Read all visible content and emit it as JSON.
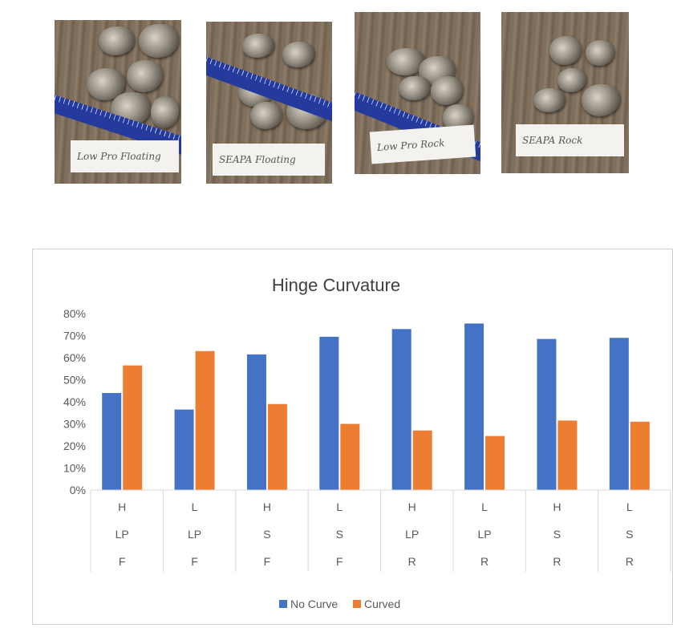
{
  "photos": [
    {
      "caption": "Low Pro Floating"
    },
    {
      "caption": "SEAPA Floating"
    },
    {
      "caption": "Low Pro Rock"
    },
    {
      "caption": "SEAPA Rock"
    }
  ],
  "chart_data": {
    "type": "bar",
    "title": "Hinge Curvature",
    "xlabel": "",
    "ylabel": "",
    "ylim": [
      0,
      0.8
    ],
    "yticks": [
      "0%",
      "10%",
      "20%",
      "30%",
      "40%",
      "50%",
      "60%",
      "70%",
      "80%"
    ],
    "categories": [
      [
        "H",
        "LP",
        "F"
      ],
      [
        "L",
        "LP",
        "F"
      ],
      [
        "H",
        "S",
        "F"
      ],
      [
        "L",
        "S",
        "F"
      ],
      [
        "H",
        "LP",
        "R"
      ],
      [
        "L",
        "LP",
        "R"
      ],
      [
        "H",
        "S",
        "R"
      ],
      [
        "L",
        "S",
        "R"
      ]
    ],
    "series": [
      {
        "name": "No Curve",
        "color": "#4472C4",
        "values": [
          0.44,
          0.365,
          0.615,
          0.695,
          0.73,
          0.755,
          0.685,
          0.69
        ]
      },
      {
        "name": "Curved",
        "color": "#ED7D31",
        "values": [
          0.565,
          0.63,
          0.39,
          0.3,
          0.27,
          0.245,
          0.315,
          0.31
        ]
      }
    ],
    "legend_position": "bottom",
    "grid": false
  }
}
